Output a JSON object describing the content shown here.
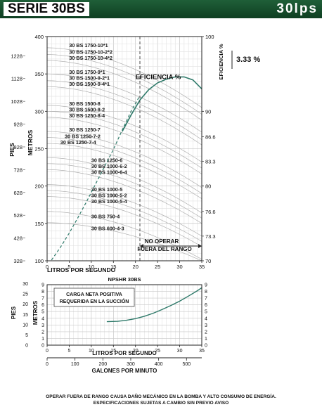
{
  "header": {
    "title": "SERIE 30BS",
    "flow_rating": "30lps"
  },
  "efficiency_box": {
    "label": "3.33 %"
  },
  "chart_data": [
    {
      "type": "line",
      "title": "",
      "xlabel": "LITROS POR SEGUNDO",
      "xlim": [
        0,
        35
      ],
      "x_ticks": [
        0,
        5,
        10,
        15,
        20,
        25,
        30,
        35
      ],
      "ylabel_left_outer": "PIES",
      "ylabel_left_inner": "METROS",
      "ylim": [
        100,
        400
      ],
      "y_ticks": [
        100,
        150,
        200,
        250,
        300,
        350,
        400
      ],
      "pies_ticks": [
        328,
        428,
        528,
        628,
        728,
        828,
        928,
        1028,
        1128,
        1228
      ],
      "ylabel_right": "EFICIENCIA %",
      "eff_ylim": [
        70,
        100
      ],
      "eff_ticks_major": [
        70,
        80,
        90,
        100
      ],
      "eff_ticks_labeled": [
        {
          "value": 86.6,
          "label": "86.6"
        },
        {
          "value": 83.3,
          "label": "83.3"
        },
        {
          "value": 76.6,
          "label": "76.6"
        },
        {
          "value": 73.3,
          "label": "73.3"
        }
      ],
      "grid": true,
      "legend": "none",
      "limit_flow": 21,
      "limit_text": [
        "NO OPERAR",
        "FUERA DEL RANGO"
      ],
      "efficiency_label": "EFICIENCIA %",
      "efficiency_curve": [
        [
          17,
          87.3
        ],
        [
          19,
          89.5
        ],
        [
          21,
          91.5
        ],
        [
          23,
          92.9
        ],
        [
          25,
          93.8
        ],
        [
          27,
          94.3
        ],
        [
          29,
          94.6
        ],
        [
          31,
          94.6
        ],
        [
          33,
          94.2
        ],
        [
          35,
          93.0
        ]
      ],
      "bep_curve": [
        [
          1,
          101
        ],
        [
          3,
          118
        ],
        [
          5,
          137
        ],
        [
          7,
          158
        ],
        [
          9,
          180
        ],
        [
          11,
          203
        ],
        [
          13,
          226
        ],
        [
          15,
          249
        ],
        [
          17,
          275
        ],
        [
          19,
          300
        ],
        [
          21,
          321
        ]
      ],
      "curve_colors": {
        "head": "#b0b0b0",
        "efficiency": "#2f7a6a",
        "bep": "#2f7a6a",
        "limit": "#333333"
      },
      "series": [
        {
          "name": "30 BS 1750-10*1",
          "shutoff": 385,
          "at35": 305
        },
        {
          "name": "30 BS 1750-10-2*2",
          "shutoff": 376,
          "at35": 296
        },
        {
          "name": "30 BS 1750-10-4*2",
          "shutoff": 368,
          "at35": 288
        },
        {
          "name": "30 BS 1750-9*1",
          "shutoff": 350,
          "at35": 272
        },
        {
          "name": "30 BS 1500-9-2*1",
          "shutoff": 341,
          "at35": 262
        },
        {
          "name": "30 BS 1500-9-4*1",
          "shutoff": 333,
          "at35": 255
        },
        {
          "name": "30 BS 1500-8",
          "shutoff": 308,
          "at35": 232
        },
        {
          "name": "30 BS 1500-8-2",
          "shutoff": 300,
          "at35": 224
        },
        {
          "name": "30 BS 1250-8-4",
          "shutoff": 292,
          "at35": 216
        },
        {
          "name": "30 BS 1250-7",
          "shutoff": 273,
          "at35": 198
        },
        {
          "name": "30 BS 1250-7-2",
          "shutoff": 265,
          "at35": 190
        },
        {
          "name": "30 BS 1250-7-4",
          "shutoff": 257,
          "at35": 183
        },
        {
          "name": "30 BS 1250-6",
          "shutoff": 238,
          "at35": 164
        },
        {
          "name": "30 BS 1000-6-2",
          "shutoff": 230,
          "at35": 157
        },
        {
          "name": "30 BS 1000-6-4",
          "shutoff": 222,
          "at35": 150
        },
        {
          "name": "30 BS 1000-5",
          "shutoff": 202,
          "at35": 133
        },
        {
          "name": "30 BS 1000-5-2",
          "shutoff": 194,
          "at35": 126
        },
        {
          "name": "30 BS 1000-5-4",
          "shutoff": 186,
          "at35": 119
        },
        {
          "name": "30 BS 750-4",
          "shutoff": 166,
          "at35": 102
        },
        {
          "name": "30 BS 600-4-3",
          "shutoff": 151,
          "at35": 100
        }
      ],
      "label_positions": [
        {
          "name": "30 BS 1750-10*1",
          "x": 5,
          "y": 386
        },
        {
          "name": "30 BS 1750-10-2*2",
          "x": 5,
          "y": 377
        },
        {
          "name": "30 BS 1750-10-4*2",
          "x": 5,
          "y": 369
        },
        {
          "name": "30 BS 1750-9*1",
          "x": 5,
          "y": 350
        },
        {
          "name": "30 BS 1500-9-2*1",
          "x": 5,
          "y": 342
        },
        {
          "name": "30 BS 1500-9-4*1",
          "x": 5,
          "y": 334
        },
        {
          "name": "30 BS 1500-8",
          "x": 5,
          "y": 308
        },
        {
          "name": "30 BS 1500-8-2",
          "x": 5,
          "y": 300
        },
        {
          "name": "30 BS 1250-8-4",
          "x": 5,
          "y": 292
        },
        {
          "name": "30 BS 1250-7",
          "x": 5,
          "y": 273
        },
        {
          "name": "30 BS 1250-7-2",
          "x": 4,
          "y": 264
        },
        {
          "name": "30 BS 1250-7-4",
          "x": 3,
          "y": 256
        },
        {
          "name": "30 BS 1250-6",
          "x": 10,
          "y": 232
        },
        {
          "name": "30 BS 1000-6-2",
          "x": 10,
          "y": 224
        },
        {
          "name": "30 BS 1000-6-4",
          "x": 10,
          "y": 216
        },
        {
          "name": "30 BS 1000-5",
          "x": 10,
          "y": 193
        },
        {
          "name": "30 BS 1000-5-2",
          "x": 10,
          "y": 185
        },
        {
          "name": "30 BS 1000-5-4",
          "x": 10,
          "y": 177
        },
        {
          "name": "30 BS 750-4",
          "x": 10,
          "y": 157
        },
        {
          "name": "30 BS 600-4-3",
          "x": 10,
          "y": 141
        }
      ]
    },
    {
      "type": "line",
      "title": "NPSHR 30BS",
      "xlabel": "LITROS POR SEGUNDO",
      "xlim": [
        0,
        35
      ],
      "x_ticks": [
        0,
        5,
        10,
        15,
        20,
        25,
        30,
        35
      ],
      "ylabel_metros": "METROS",
      "ylim": [
        0,
        9
      ],
      "y_ticks": [
        0,
        1,
        2,
        3,
        4,
        5,
        6,
        7,
        8,
        9
      ],
      "ylabel_pies": "PIES",
      "pies_ticks": [
        0,
        5,
        10,
        15,
        20,
        25,
        30
      ],
      "right_ticks": [
        0,
        1,
        2,
        3,
        4,
        5,
        6,
        7,
        8,
        9
      ],
      "grid": true,
      "legend": "none",
      "annotation": [
        "CARGA NETA POSITIVA",
        "REQUERIDA EN LA SUCCIÓN"
      ],
      "series": [
        {
          "name": "NPSHR",
          "x": [
            13.5,
            16,
            18,
            20,
            22,
            24,
            26,
            28,
            30,
            32,
            34,
            35
          ],
          "y": [
            3.5,
            3.55,
            3.7,
            3.95,
            4.3,
            4.75,
            5.3,
            5.9,
            6.55,
            7.3,
            8.1,
            8.55
          ]
        }
      ],
      "gpm_label": "GALONES POR MINUTO",
      "gpm_ticks": [
        0,
        100,
        200,
        300,
        400,
        500
      ]
    }
  ],
  "footer": {
    "line1": "OPERAR FUERA DE RANGO CAUSA DAÑO MECÁNICO EN LA BOMBA Y ALTO CONSUMO DE ENERGÍA.",
    "line2": "ESPECIFICACIONES SUJETAS A CAMBIO SIN PREVIO AVISO"
  }
}
